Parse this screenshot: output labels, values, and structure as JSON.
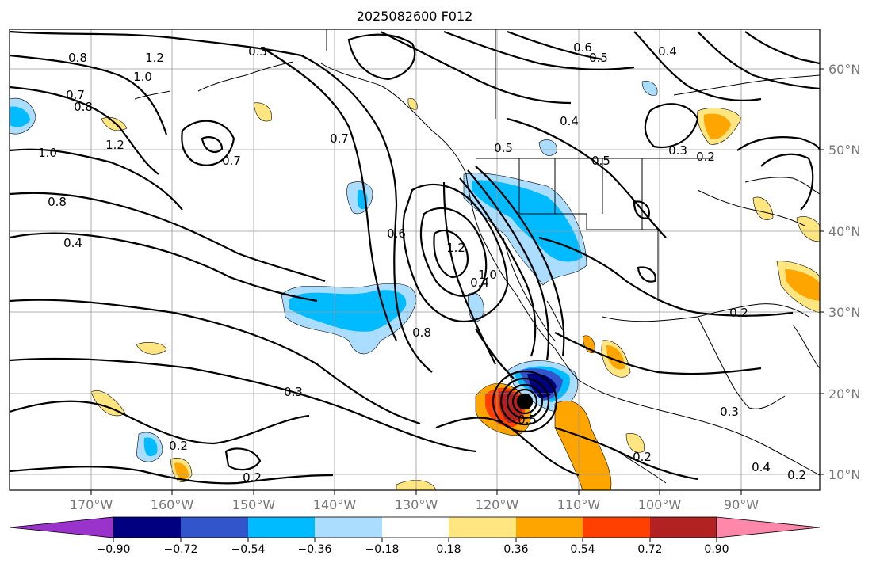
{
  "title": "2025082600 F012",
  "lat_labels": [
    "60°N",
    "50°N",
    "40°N",
    "30°N",
    "20°N",
    "10°N"
  ],
  "lon_labels": [
    "170°W",
    "160°W",
    "150°W",
    "140°W",
    "130°W",
    "120°W",
    "110°W",
    "100°W",
    "90°W"
  ],
  "colorbar": {
    "ticks": [
      "−0.90",
      "−0.72",
      "−0.54",
      "−0.36",
      "−0.18",
      "0.18",
      "0.36",
      "0.54",
      "0.72",
      "0.90"
    ],
    "colors": [
      "#9933cc",
      "#000080",
      "#3355cc",
      "#00bbff",
      "#aaddff",
      "#ffffff",
      "#ffe680",
      "#ffa500",
      "#ff4000",
      "#b22222",
      "#ff88aa"
    ]
  },
  "contour_labels": [
    "1.2",
    "0.3",
    "0.6",
    "0.5",
    "0.4",
    "0.8",
    "1.0",
    "0.7",
    "0.8",
    "1.2",
    "1.0",
    "0.8",
    "0.4",
    "0.7",
    "0.7",
    "0.4",
    "0.5",
    "0.5",
    "0.3",
    "0.2",
    "0.6",
    "1.2",
    "1.0",
    "0.4",
    "0.8",
    "0.3",
    "0.2",
    "0.2",
    "0.2",
    "0.2",
    "0.4",
    "0.2",
    "0.5",
    "0.3"
  ],
  "colors": {
    "contour": "#000000",
    "coast": "#000000",
    "grid": "#999999",
    "hurricane": "#000000"
  }
}
